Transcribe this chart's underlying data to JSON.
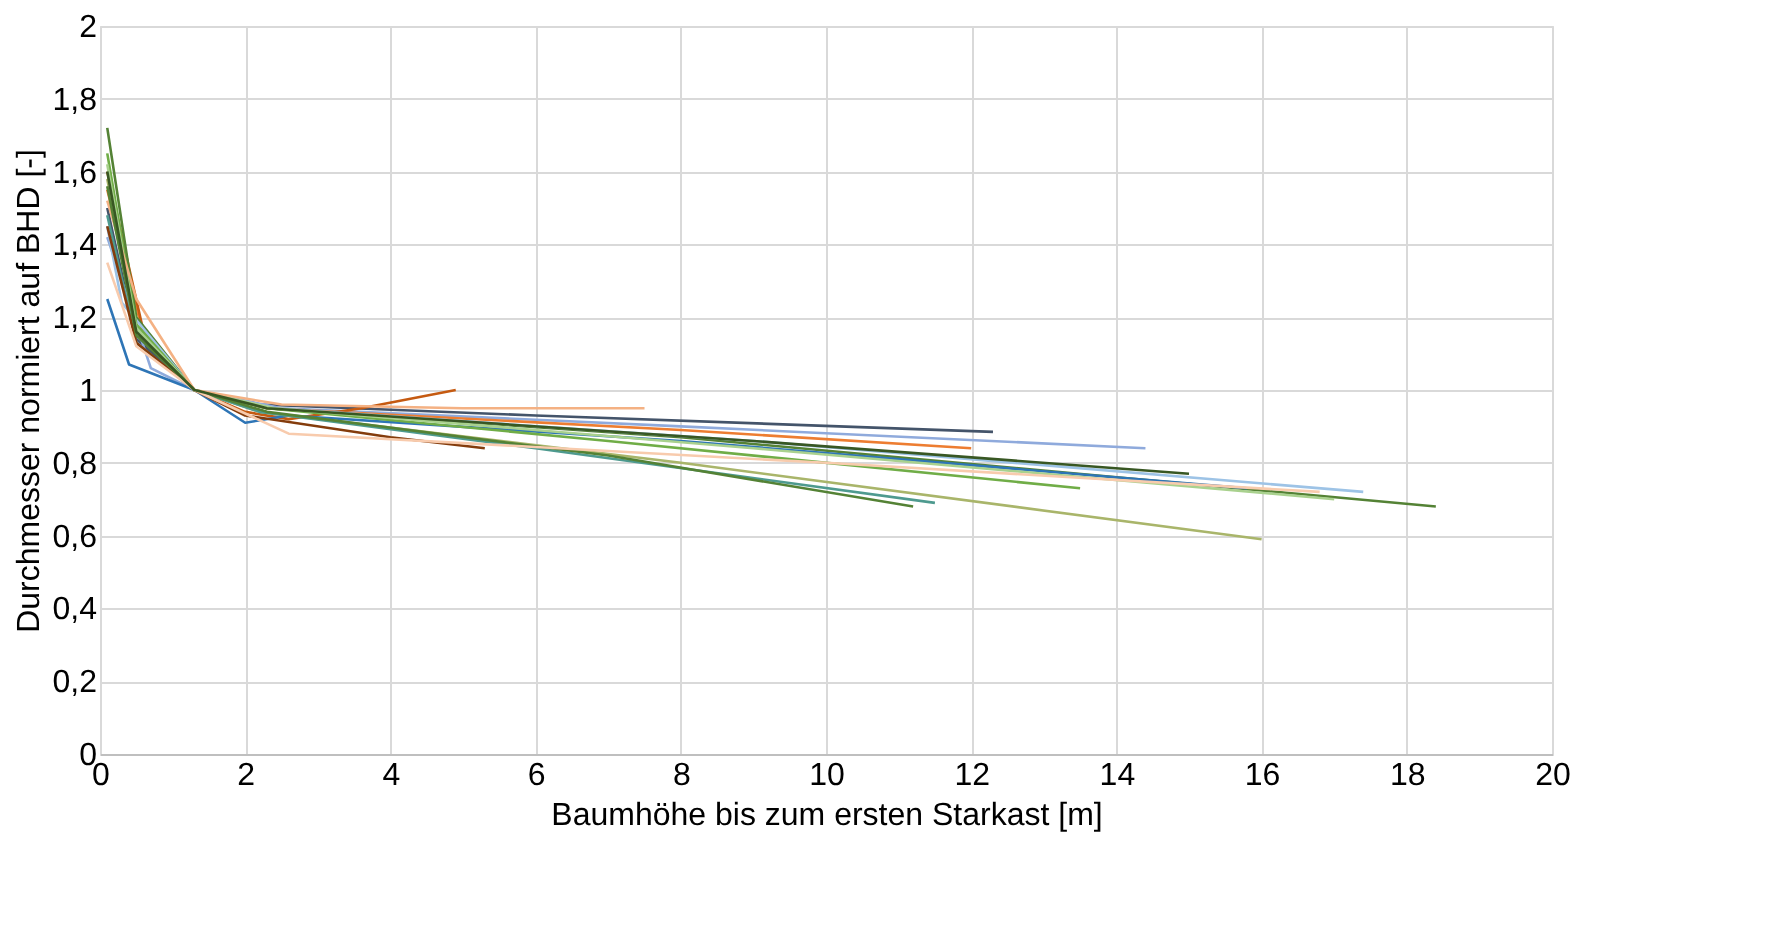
{
  "chart_data": {
    "type": "line",
    "xlabel": "Baumhöhe bis zum ersten Starkast [m]",
    "ylabel": "Durchmesser normiert auf BHD [-]",
    "xlim": [
      0,
      20
    ],
    "xticks": [
      0,
      2,
      4,
      6,
      8,
      10,
      12,
      14,
      16,
      18,
      20
    ],
    "ylim": [
      0,
      2
    ],
    "yticks": [
      0,
      {
        "value": 0.2,
        "label": "0,2"
      },
      {
        "value": 0.4,
        "label": "0,4"
      },
      {
        "value": 0.6,
        "label": "0,6"
      },
      {
        "value": 0.8,
        "label": "0,8"
      },
      1,
      {
        "value": 1.2,
        "label": "1,2"
      },
      {
        "value": 1.4,
        "label": "1,4"
      },
      {
        "value": 1.6,
        "label": "1,6"
      },
      {
        "value": 1.8,
        "label": "1,8"
      },
      2
    ],
    "grid": true,
    "legend": false,
    "marker": "none",
    "line_style": "solid",
    "series": [
      {
        "color": "#44546a",
        "x": [
          0.1,
          0.5,
          1.3,
          2.2,
          6,
          12.3
        ],
        "values": [
          1.5,
          1.14,
          1.0,
          0.96,
          0.93,
          0.885
        ]
      },
      {
        "color": "#8faadc",
        "x": [
          0.1,
          0.7,
          1.3,
          2.5,
          8,
          14.4
        ],
        "values": [
          1.42,
          1.06,
          1.0,
          0.95,
          0.9,
          0.84
        ]
      },
      {
        "color": "#ed7d31",
        "x": [
          0.1,
          0.6,
          1.3,
          2.3,
          8,
          12
        ],
        "values": [
          1.55,
          1.15,
          1.0,
          0.95,
          0.89,
          0.84
        ]
      },
      {
        "color": "#c55a11",
        "x": [
          0.1,
          0.6,
          1.3,
          2,
          2.6,
          3.6,
          4.9
        ],
        "values": [
          1.6,
          1.16,
          1.0,
          0.94,
          0.92,
          0.95,
          1.0
        ]
      },
      {
        "color": "#548235",
        "x": [
          0.1,
          0.5,
          1.3,
          2.3,
          8,
          18.4
        ],
        "values": [
          1.72,
          1.2,
          1.0,
          0.95,
          0.87,
          0.68
        ]
      },
      {
        "color": "#9dc3e6",
        "x": [
          0.1,
          0.3,
          1.3,
          2.4,
          9,
          17.4
        ],
        "values": [
          1.45,
          1.24,
          1.0,
          0.95,
          0.86,
          0.72
        ]
      },
      {
        "color": "#2e75b6",
        "x": [
          0.1,
          0.4,
          1.3,
          2,
          2.6,
          8,
          15.8
        ],
        "values": [
          1.25,
          1.07,
          1.0,
          0.91,
          0.93,
          0.86,
          0.73
        ]
      },
      {
        "color": "#a9b56a",
        "x": [
          0.1,
          0.5,
          1.3,
          2.2,
          8,
          16
        ],
        "values": [
          1.58,
          1.17,
          1.0,
          0.94,
          0.8,
          0.59
        ]
      },
      {
        "color": "#70ad47",
        "x": [
          0.1,
          0.5,
          1.3,
          2.3,
          7,
          13.5
        ],
        "values": [
          1.65,
          1.18,
          1.0,
          0.95,
          0.86,
          0.73
        ]
      },
      {
        "color": "#a9d18e",
        "x": [
          0.1,
          0.5,
          1.3,
          2.4,
          9,
          17
        ],
        "values": [
          1.62,
          1.17,
          1.0,
          0.95,
          0.84,
          0.7
        ]
      },
      {
        "color": "#4e9a8f",
        "x": [
          0.1,
          0.5,
          1.3,
          2.2,
          6,
          11.5
        ],
        "values": [
          1.48,
          1.13,
          1.0,
          0.94,
          0.84,
          0.69
        ]
      },
      {
        "color": "#f4b183",
        "x": [
          0.1,
          0.5,
          1.3,
          2.5,
          5,
          7.5
        ],
        "values": [
          1.52,
          1.25,
          1.0,
          0.96,
          0.95,
          0.95
        ]
      },
      {
        "color": "#843c0c",
        "x": [
          0.1,
          0.5,
          1.3,
          2,
          4,
          5.3
        ],
        "values": [
          1.45,
          1.13,
          1.0,
          0.93,
          0.87,
          0.84
        ]
      },
      {
        "color": "#548235",
        "x": [
          0.1,
          0.5,
          1.3,
          2.3,
          7,
          11.2
        ],
        "values": [
          1.56,
          1.15,
          1.0,
          0.94,
          0.82,
          0.68
        ]
      },
      {
        "color": "#f8cbad",
        "x": [
          0.1,
          0.5,
          1.3,
          2.6,
          10,
          16.8
        ],
        "values": [
          1.35,
          1.12,
          1.0,
          0.88,
          0.8,
          0.72
        ]
      },
      {
        "color": "#385723",
        "x": [
          0.1,
          0.5,
          1.3,
          2.3,
          9,
          15
        ],
        "values": [
          1.6,
          1.16,
          1.0,
          0.95,
          0.86,
          0.77
        ]
      }
    ]
  }
}
